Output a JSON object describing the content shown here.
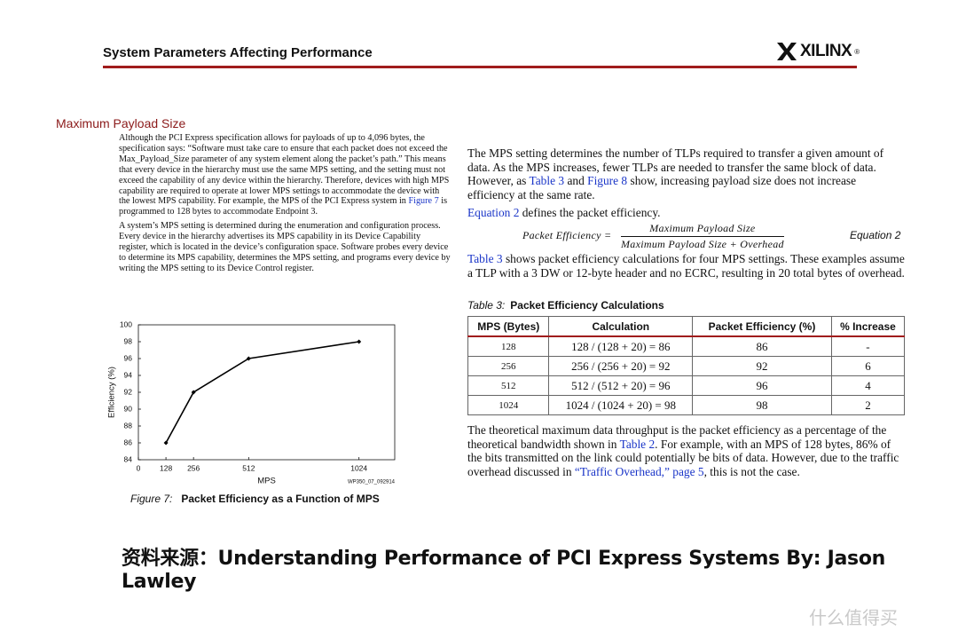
{
  "header": {
    "title": "System Parameters Affecting Performance",
    "logo": "XILINX",
    "logo_mark": "®"
  },
  "left": {
    "heading": "Maximum Payload Size",
    "paragraphs": [
      [
        "Although the PCI Express specification allows for payloads of up to 4,096 bytes, the specification says: “Software must take care to ensure that each packet does not exceed the Max_Payload_Size parameter of any system element along the packet’s path.” This means that every device in the hierarchy must use the same MPS setting, and the setting must not exceed the capability of any device within the hierarchy. Therefore, devices with high MPS capability are required to operate at lower MPS settings to accommodate the device with the lowest MPS capability. For example, the MPS of the PCI Express system in ",
        {
          "link": "Figure 7"
        },
        " is programmed to 128 bytes to accommodate Endpoint 3."
      ],
      [
        "A system’s MPS setting is determined during the enumeration and configuration process. Every device in the hierarchy advertises its MPS capability in its Device Capability register, which is located in the device’s configuration space. Software probes every device to determine its MPS capability, determines the MPS setting, and programs every device by writing the MPS setting to its Device Control register."
      ]
    ]
  },
  "chart_data": {
    "type": "line",
    "x": [
      128,
      256,
      512,
      1024
    ],
    "values": [
      86,
      92,
      96,
      98
    ],
    "xlim": [
      0,
      1190
    ],
    "xticks": [
      0,
      128,
      256,
      512,
      1024
    ],
    "ylim": [
      84,
      100
    ],
    "yticks": [
      84,
      86,
      88,
      90,
      92,
      94,
      96,
      98,
      100
    ],
    "xlabel": "MPS",
    "ylabel": "Efficiency (%)",
    "note": "WP350_07_092914",
    "color": "#000000",
    "caption_label": "Figure 7:",
    "caption": "Packet Efficiency as a Function of MPS"
  },
  "right": {
    "paragraphs": [
      [
        "The MPS setting determines the number of TLPs required to transfer a given amount of data. As the MPS increases, fewer TLPs are needed to transfer the same block of data. However, as ",
        {
          "link": "Table 3"
        },
        " and ",
        {
          "link": "Figure 8"
        },
        " show, increasing payload size does not increase efficiency at the same rate."
      ],
      [
        {
          "link": "Equation 2"
        },
        " defines the packet efficiency."
      ]
    ],
    "equation": {
      "lhs": "Packet Efficiency =",
      "numerator": "Maximum Payload Size",
      "denominator": "Maximum Payload Size + Overhead",
      "label": "Equation 2"
    },
    "paragraphs_after": [
      [
        {
          "link": "Table 3"
        },
        " shows packet efficiency calculations for four MPS settings. These examples assume a TLP with a 3 DW or 12-byte header and no ECRC, resulting in 20 total bytes of overhead."
      ]
    ],
    "table": {
      "caption_label": "Table  3:",
      "caption": "Packet Efficiency Calculations",
      "header": [
        "MPS (Bytes)",
        "Calculation",
        "Packet Efficiency (%)",
        "% Increase"
      ],
      "rows": [
        [
          "128",
          "128 / (128 + 20) = 86",
          "86",
          "-"
        ],
        [
          "256",
          "256 / (256 + 20) = 92",
          "92",
          "6"
        ],
        [
          "512",
          "512 / (512 + 20) = 96",
          "96",
          "4"
        ],
        [
          "1024",
          "1024 / (1024 + 20) = 98",
          "98",
          "2"
        ]
      ]
    },
    "paragraphs_end": [
      [
        "The theoretical maximum data throughput is the packet efficiency as a percentage of the theoretical bandwidth shown in ",
        {
          "link": "Table 2"
        },
        ". For example, with an MPS of 128 bytes, 86% of the bits transmitted on the link could potentially be bits of data. However, due to the traffic overhead discussed in ",
        {
          "link": "“Traffic Overhead,” page 5"
        },
        ", this is not the case."
      ]
    ]
  },
  "footer": {
    "source": "资料来源：Understanding Performance of PCI Express Systems By: Jason Lawley",
    "watermark": "什么值得买"
  }
}
